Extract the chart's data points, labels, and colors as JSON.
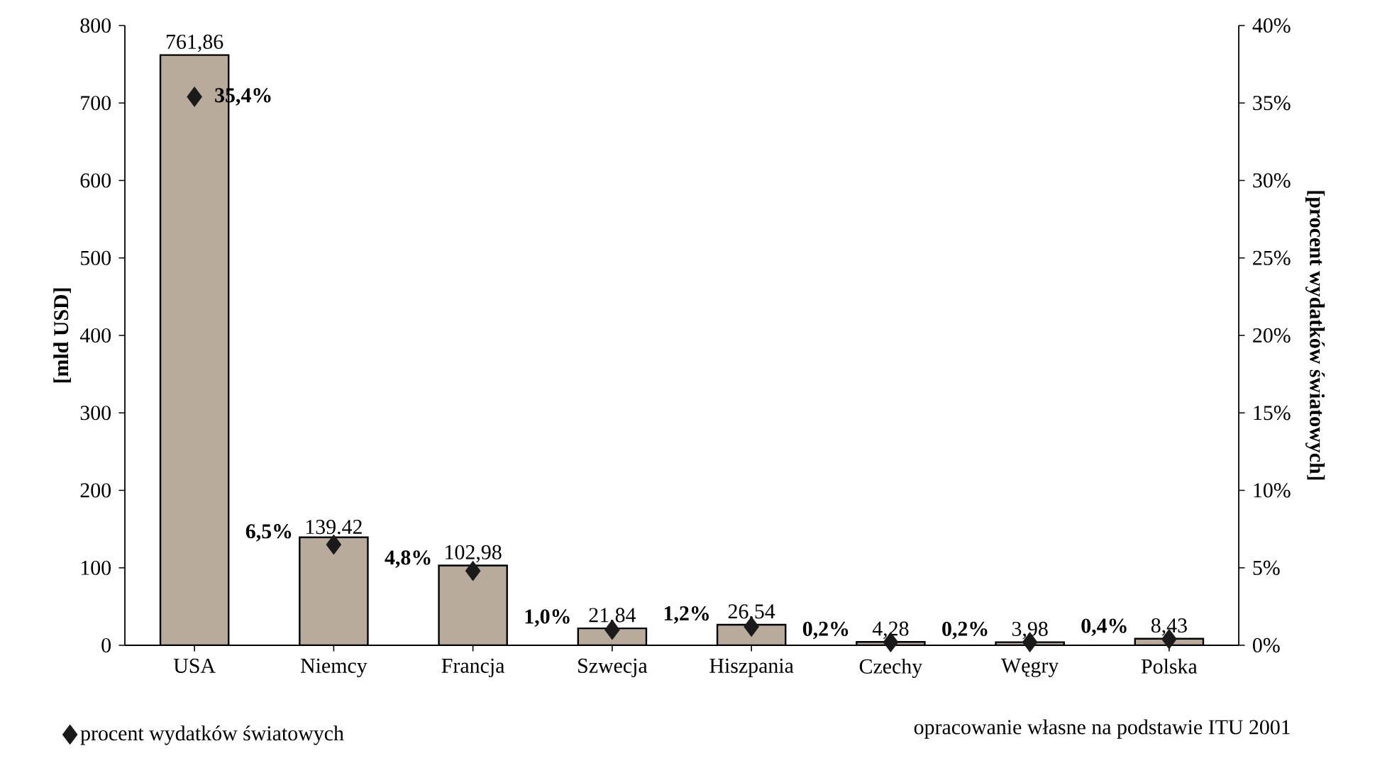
{
  "chart_data": {
    "type": "bar",
    "ylabel": "[mld USD]",
    "y2label": "[procent wydatków światowych]",
    "categories": [
      "USA",
      "Niemcy",
      "Francja",
      "Szwecja",
      "Hiszpania",
      "Czechy",
      "Węgry",
      "Polska"
    ],
    "series": [
      {
        "color": "#b8ab9b",
        "values": [
          761.86,
          139.42,
          102.98,
          21.84,
          26.54,
          4.28,
          3.98,
          8.43
        ],
        "value_labels": [
          "761,86",
          "139.42",
          "102,98",
          "21,84",
          "26,54",
          "4,28",
          "3,98",
          "8,43"
        ]
      },
      {
        "type": "scatter",
        "name": "procent wydatków światowych",
        "axis": "y2",
        "color": "#1a1a1a",
        "marker": "diamond",
        "values": [
          35.4,
          6.5,
          4.8,
          1.0,
          1.2,
          0.2,
          0.2,
          0.4
        ],
        "value_labels": [
          "35,4%",
          "6,5%",
          "4,8%",
          "1,0%",
          "1,2%",
          "0,2%",
          "0,2%",
          "0,4%"
        ]
      }
    ],
    "ylim": [
      0,
      800
    ],
    "yticks": [
      0,
      100,
      200,
      300,
      400,
      500,
      600,
      700,
      800
    ],
    "y2lim": [
      0,
      40
    ],
    "y2ticks": [
      {
        "value": 0,
        "label": "0%"
      },
      {
        "value": 5,
        "label": "5%"
      },
      {
        "value": 10,
        "label": "10%"
      },
      {
        "value": 15,
        "label": "15%"
      },
      {
        "value": 20,
        "label": "20%"
      },
      {
        "value": 25,
        "label": "25%"
      },
      {
        "value": 30,
        "label": "30%"
      },
      {
        "value": 35,
        "label": "35%"
      },
      {
        "value": 40,
        "label": "40%"
      }
    ],
    "legend": "bottom left",
    "grid": false,
    "annotations": [
      "opracowanie własne na podstawie ITU 2001"
    ]
  }
}
